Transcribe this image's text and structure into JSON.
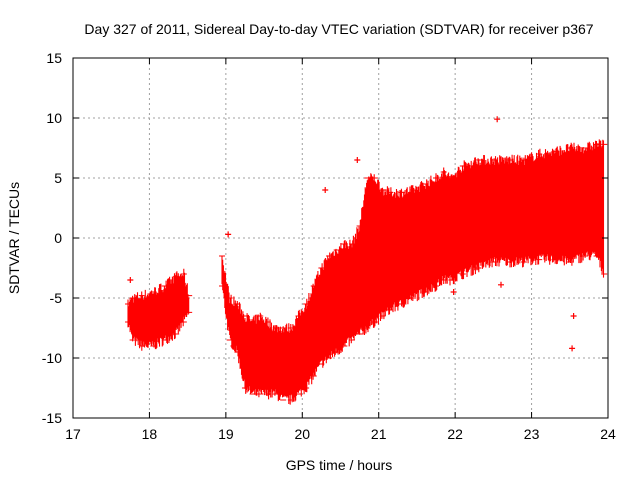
{
  "chart_data": {
    "type": "scatter",
    "title": "Day 327 of 2011, Sidereal Day-to-day VTEC variation (SDTVAR) for receiver p367",
    "xlabel": "GPS time / hours",
    "ylabel": "SDTVAR / TECUs",
    "xlim": [
      17,
      24
    ],
    "ylim": [
      -15,
      15
    ],
    "xticks": [
      17,
      18,
      19,
      20,
      21,
      22,
      23,
      24
    ],
    "yticks": [
      -15,
      -10,
      -5,
      0,
      5,
      10,
      15
    ],
    "grid": true,
    "marker": "+",
    "color": "#ff0000",
    "bands": [
      {
        "x": 17.72,
        "lo": -7.0,
        "hi": -5.5
      },
      {
        "x": 17.78,
        "lo": -8.5,
        "hi": -5.0
      },
      {
        "x": 17.9,
        "lo": -9.0,
        "hi": -4.8
      },
      {
        "x": 18.05,
        "lo": -9.0,
        "hi": -4.5
      },
      {
        "x": 18.2,
        "lo": -8.5,
        "hi": -4.0
      },
      {
        "x": 18.35,
        "lo": -8.0,
        "hi": -3.2
      },
      {
        "x": 18.45,
        "lo": -7.0,
        "hi": -3.0
      },
      {
        "x": 18.52,
        "lo": -6.2,
        "hi": -4.8
      },
      {
        "x": 18.95,
        "lo": -4.0,
        "hi": -1.5
      },
      {
        "x": 19.05,
        "lo": -8.5,
        "hi": -5.0
      },
      {
        "x": 19.15,
        "lo": -9.5,
        "hi": -5.5
      },
      {
        "x": 19.25,
        "lo": -12.5,
        "hi": -6.5
      },
      {
        "x": 19.35,
        "lo": -13.0,
        "hi": -7.0
      },
      {
        "x": 19.45,
        "lo": -13.0,
        "hi": -6.5
      },
      {
        "x": 19.55,
        "lo": -13.0,
        "hi": -7.0
      },
      {
        "x": 19.65,
        "lo": -13.0,
        "hi": -7.5
      },
      {
        "x": 19.75,
        "lo": -13.5,
        "hi": -7.5
      },
      {
        "x": 19.85,
        "lo": -13.5,
        "hi": -7.5
      },
      {
        "x": 19.95,
        "lo": -13.0,
        "hi": -6.5
      },
      {
        "x": 20.05,
        "lo": -12.5,
        "hi": -5.5
      },
      {
        "x": 20.15,
        "lo": -11.5,
        "hi": -4.0
      },
      {
        "x": 20.25,
        "lo": -10.5,
        "hi": -2.5
      },
      {
        "x": 20.35,
        "lo": -10.0,
        "hi": -1.5
      },
      {
        "x": 20.45,
        "lo": -9.5,
        "hi": -1.0
      },
      {
        "x": 20.55,
        "lo": -9.0,
        "hi": -0.5
      },
      {
        "x": 20.65,
        "lo": -8.5,
        "hi": -0.5
      },
      {
        "x": 20.75,
        "lo": -8.0,
        "hi": 1.0
      },
      {
        "x": 20.85,
        "lo": -7.5,
        "hi": 5.0
      },
      {
        "x": 20.95,
        "lo": -7.0,
        "hi": 5.0
      },
      {
        "x": 21.05,
        "lo": -6.5,
        "hi": 4.0
      },
      {
        "x": 21.15,
        "lo": -6.0,
        "hi": 3.8
      },
      {
        "x": 21.3,
        "lo": -5.5,
        "hi": 3.8
      },
      {
        "x": 21.45,
        "lo": -5.0,
        "hi": 4.0
      },
      {
        "x": 21.6,
        "lo": -4.5,
        "hi": 4.5
      },
      {
        "x": 21.75,
        "lo": -4.0,
        "hi": 5.0
      },
      {
        "x": 21.85,
        "lo": -3.5,
        "hi": 5.5
      },
      {
        "x": 21.95,
        "lo": -3.5,
        "hi": 5.0
      },
      {
        "x": 22.1,
        "lo": -3.0,
        "hi": 6.0
      },
      {
        "x": 22.3,
        "lo": -2.5,
        "hi": 6.5
      },
      {
        "x": 22.5,
        "lo": -2.0,
        "hi": 6.5
      },
      {
        "x": 22.7,
        "lo": -2.0,
        "hi": 6.5
      },
      {
        "x": 22.9,
        "lo": -2.0,
        "hi": 6.5
      },
      {
        "x": 23.1,
        "lo": -1.8,
        "hi": 7.0
      },
      {
        "x": 23.3,
        "lo": -1.8,
        "hi": 7.2
      },
      {
        "x": 23.5,
        "lo": -2.0,
        "hi": 7.5
      },
      {
        "x": 23.7,
        "lo": -1.5,
        "hi": 7.5
      },
      {
        "x": 23.85,
        "lo": -1.5,
        "hi": 7.8
      },
      {
        "x": 23.95,
        "lo": -3.0,
        "hi": 7.8
      }
    ],
    "outliers": [
      {
        "x": 19.03,
        "y": 0.3
      },
      {
        "x": 22.55,
        "y": 9.9
      },
      {
        "x": 23.53,
        "y": -9.2
      },
      {
        "x": 20.72,
        "y": 6.5
      },
      {
        "x": 20.3,
        "y": 4.0
      },
      {
        "x": 22.6,
        "y": -3.9
      },
      {
        "x": 21.98,
        "y": -4.5
      },
      {
        "x": 23.55,
        "y": -6.5
      },
      {
        "x": 19.1,
        "y": -9.0
      },
      {
        "x": 17.75,
        "y": -3.5
      }
    ]
  }
}
